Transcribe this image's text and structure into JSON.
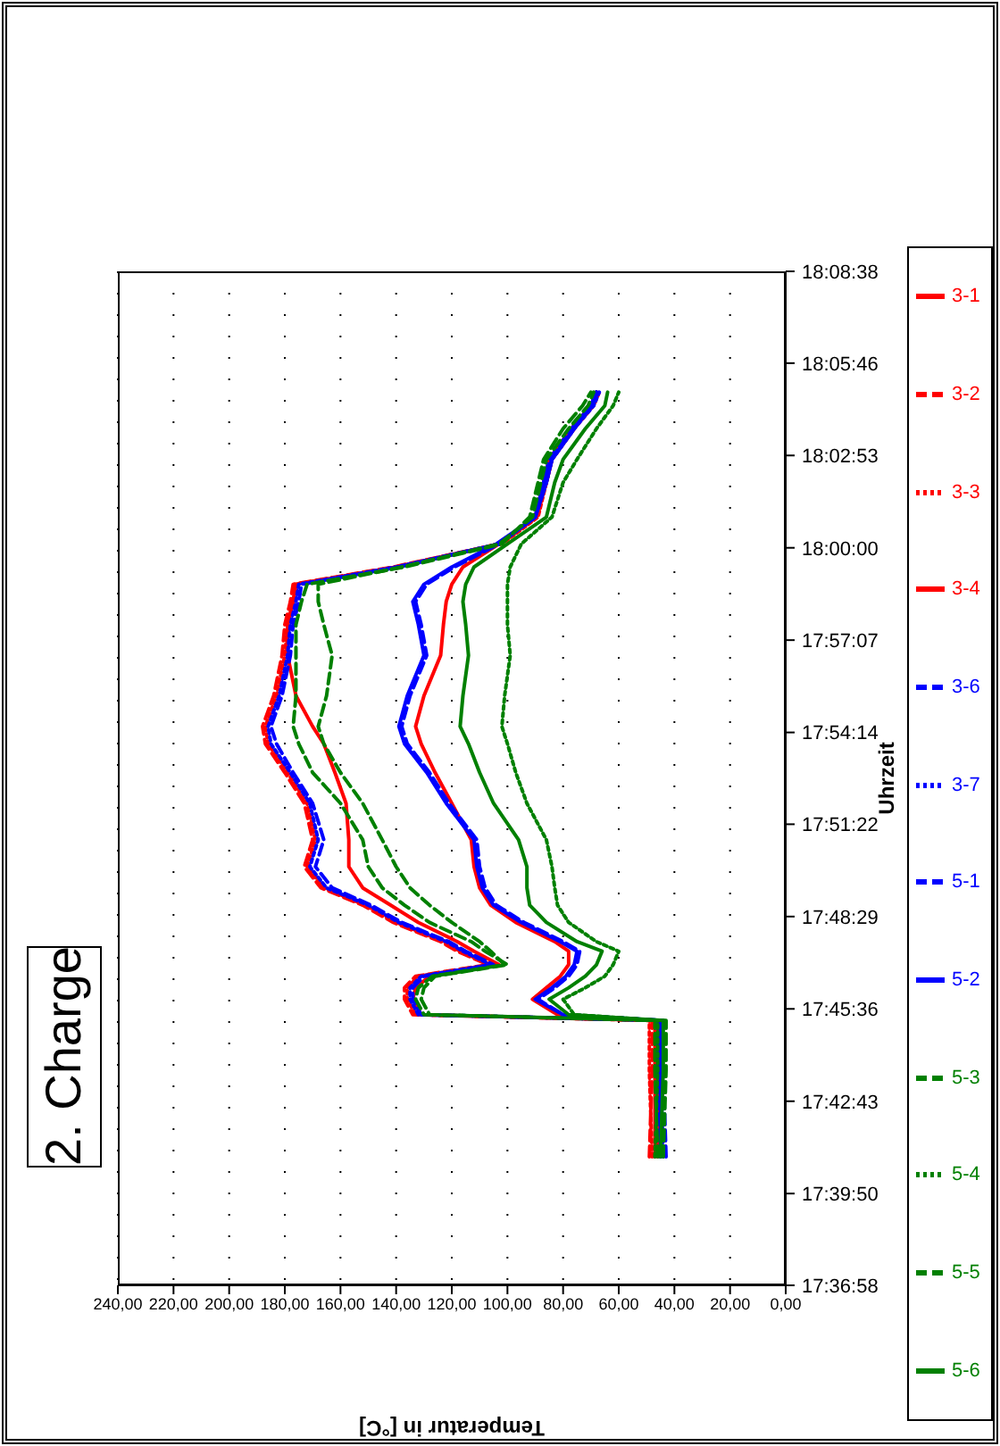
{
  "chart_data": {
    "type": "line",
    "title": "2. Charge",
    "xlabel": "Temperatur in [°C]",
    "ylabel": "Uhrzeit",
    "xlim": [
      240,
      0
    ],
    "xticks": [
      {
        "value": 240,
        "label": "240,00"
      },
      {
        "value": 220,
        "label": "220,00"
      },
      {
        "value": 200,
        "label": "200,00"
      },
      {
        "value": 180,
        "label": "180,00"
      },
      {
        "value": 160,
        "label": "160,00"
      },
      {
        "value": 140,
        "label": "140,00"
      },
      {
        "value": 120,
        "label": "120,00"
      },
      {
        "value": 100,
        "label": "100,00"
      },
      {
        "value": 80,
        "label": "80,00"
      },
      {
        "value": 60,
        "label": "60,00"
      },
      {
        "value": 40,
        "label": "40,00"
      },
      {
        "value": 20,
        "label": "20,00"
      },
      {
        "value": 0,
        "label": "0,00"
      }
    ],
    "ylim": [
      17.61611,
      18.14389
    ],
    "yticks": [
      {
        "value": 17.61611,
        "label": "17:36:58"
      },
      {
        "value": 17.66389,
        "label": "17:39:50"
      },
      {
        "value": 17.71194,
        "label": "17:42:43"
      },
      {
        "value": 17.76,
        "label": "17:45:36"
      },
      {
        "value": 17.80806,
        "label": "17:48:29"
      },
      {
        "value": 17.85611,
        "label": "17:51:22"
      },
      {
        "value": 17.90389,
        "label": "17:54:14"
      },
      {
        "value": 17.95194,
        "label": "17:57:07"
      },
      {
        "value": 18,
        "label": "18:00:00"
      },
      {
        "value": 18.04806,
        "label": "18:02:53"
      },
      {
        "value": 18.09611,
        "label": "18:05:46"
      },
      {
        "value": 18.14389,
        "label": "18:08:38"
      }
    ],
    "grid": "x",
    "legend": "right",
    "marker": "none",
    "series": [
      {
        "name": "3-1",
        "color": "#ff0000",
        "line_style": "solid",
        "x": [
          47,
          47,
          47,
          131,
          134,
          133,
          128,
          103,
          112,
          118,
          132,
          142,
          152,
          157,
          157,
          158,
          162,
          166,
          170,
          176,
          179,
          179,
          177,
          176,
          140,
          103,
          90,
          87,
          85,
          77,
          70,
          68
        ],
        "values": [
          17.683,
          17.728,
          17.754,
          17.757,
          17.765,
          17.771,
          17.777,
          17.783,
          17.79,
          17.795,
          17.805,
          17.814,
          17.823,
          17.834,
          17.848,
          17.867,
          17.883,
          17.898,
          17.907,
          17.923,
          17.944,
          17.96,
          17.972,
          17.981,
          17.99,
          18.002,
          18.016,
          18.034,
          18.046,
          18.062,
          18.074,
          18.081
        ]
      },
      {
        "name": "3-2",
        "color": "#ff0000",
        "line_style": "dashed",
        "x": [
          49,
          48,
          48,
          134,
          137,
          137,
          133,
          107,
          118,
          124,
          141,
          152,
          167,
          173,
          170,
          173,
          180,
          187,
          188,
          184,
          181,
          180,
          178,
          177,
          141,
          103,
          90,
          87,
          85,
          77,
          70,
          68
        ],
        "values": [
          17.683,
          17.728,
          17.754,
          17.757,
          17.765,
          17.771,
          17.777,
          17.783,
          17.79,
          17.795,
          17.805,
          17.814,
          17.823,
          17.834,
          17.848,
          17.867,
          17.883,
          17.898,
          17.907,
          17.923,
          17.944,
          17.96,
          17.972,
          17.981,
          17.99,
          18.002,
          18.016,
          18.034,
          18.046,
          18.062,
          18.074,
          18.081
        ]
      },
      {
        "name": "3-3",
        "color": "#ff0000",
        "line_style": "dotted",
        "x": [
          48,
          49,
          49,
          133,
          136,
          136,
          132,
          106,
          117,
          123,
          140,
          151,
          166,
          172,
          169,
          172,
          179,
          186,
          187,
          183,
          180,
          179,
          177,
          176,
          140,
          102,
          89,
          86,
          84,
          76,
          69,
          67
        ],
        "values": [
          17.683,
          17.728,
          17.754,
          17.757,
          17.765,
          17.771,
          17.777,
          17.783,
          17.79,
          17.795,
          17.805,
          17.814,
          17.823,
          17.834,
          17.848,
          17.867,
          17.883,
          17.898,
          17.907,
          17.923,
          17.944,
          17.96,
          17.972,
          17.981,
          17.99,
          18.002,
          18.016,
          18.034,
          18.046,
          18.062,
          18.074,
          18.081
        ]
      },
      {
        "name": "3-4",
        "color": "#ff0000",
        "line_style": "solid",
        "x": [
          46,
          46,
          46,
          82,
          91,
          86,
          81,
          78,
          78,
          83,
          97,
          106,
          110,
          112,
          113,
          120,
          126,
          131,
          133,
          130,
          124,
          123,
          122,
          120,
          116,
          103,
          90,
          86,
          84,
          76,
          70,
          68
        ],
        "values": [
          17.683,
          17.728,
          17.754,
          17.757,
          17.765,
          17.771,
          17.777,
          17.783,
          17.79,
          17.795,
          17.805,
          17.814,
          17.823,
          17.834,
          17.848,
          17.867,
          17.883,
          17.898,
          17.907,
          17.923,
          17.944,
          17.96,
          17.972,
          17.981,
          17.99,
          18.002,
          18.016,
          18.034,
          18.046,
          18.062,
          18.074,
          18.081
        ]
      },
      {
        "name": "3-6",
        "color": "#0000ff",
        "line_style": "dashed",
        "x": [
          45,
          46,
          46,
          131,
          134,
          134,
          130,
          105,
          115,
          121,
          138,
          149,
          163,
          169,
          166,
          170,
          177,
          183,
          185,
          181,
          178,
          177,
          175,
          174,
          139,
          103,
          90,
          87,
          85,
          77,
          70,
          68
        ],
        "values": [
          17.683,
          17.728,
          17.754,
          17.757,
          17.765,
          17.771,
          17.777,
          17.783,
          17.79,
          17.795,
          17.805,
          17.814,
          17.823,
          17.834,
          17.848,
          17.867,
          17.883,
          17.898,
          17.907,
          17.923,
          17.944,
          17.96,
          17.972,
          17.981,
          17.99,
          18.002,
          18.016,
          18.034,
          18.046,
          18.062,
          18.074,
          18.081
        ]
      },
      {
        "name": "3-7",
        "color": "#0000ff",
        "line_style": "dotted",
        "x": [
          44,
          45,
          45,
          132,
          135,
          135,
          131,
          106,
          116,
          122,
          139,
          150,
          165,
          171,
          168,
          171,
          178,
          185,
          186,
          182,
          179,
          178,
          176,
          175,
          140,
          103,
          90,
          87,
          84,
          76,
          69,
          67
        ],
        "values": [
          17.683,
          17.728,
          17.754,
          17.757,
          17.765,
          17.771,
          17.777,
          17.783,
          17.79,
          17.795,
          17.805,
          17.814,
          17.823,
          17.834,
          17.848,
          17.867,
          17.883,
          17.898,
          17.907,
          17.923,
          17.944,
          17.96,
          17.972,
          17.981,
          17.99,
          18.002,
          18.016,
          18.034,
          18.046,
          18.062,
          18.074,
          18.081
        ]
      },
      {
        "name": "5-1",
        "color": "#0000ff",
        "line_style": "dashed",
        "x": [
          43,
          44,
          44,
          80,
          89,
          83,
          78,
          75,
          74,
          80,
          94,
          104,
          108,
          110,
          111,
          121,
          128,
          136,
          138,
          135,
          129,
          131,
          133,
          129,
          119,
          103,
          90,
          86,
          84,
          76,
          70,
          68
        ],
        "values": [
          17.683,
          17.728,
          17.754,
          17.757,
          17.765,
          17.771,
          17.777,
          17.783,
          17.79,
          17.795,
          17.805,
          17.814,
          17.823,
          17.834,
          17.848,
          17.867,
          17.883,
          17.898,
          17.907,
          17.923,
          17.944,
          17.96,
          17.972,
          17.981,
          17.99,
          18.002,
          18.016,
          18.034,
          18.046,
          18.062,
          18.074,
          18.081
        ]
      },
      {
        "name": "5-2",
        "color": "#0000ff",
        "line_style": "solid",
        "x": [
          45,
          45,
          45,
          80,
          90,
          84,
          79,
          76,
          75,
          81,
          95,
          105,
          109,
          111,
          112,
          122,
          129,
          137,
          139,
          136,
          130,
          132,
          134,
          130,
          120,
          104,
          90,
          86,
          84,
          76,
          70,
          68
        ],
        "values": [
          17.683,
          17.728,
          17.754,
          17.757,
          17.765,
          17.771,
          17.777,
          17.783,
          17.79,
          17.795,
          17.805,
          17.814,
          17.823,
          17.834,
          17.848,
          17.867,
          17.883,
          17.898,
          17.907,
          17.923,
          17.944,
          17.96,
          17.972,
          17.981,
          17.99,
          18.002,
          18.016,
          18.034,
          18.046,
          18.062,
          18.074,
          18.081
        ]
      },
      {
        "name": "5-3",
        "color": "#008000",
        "line_style": "dashed",
        "x": [
          46,
          47,
          47,
          128,
          131,
          130,
          126,
          100,
          108,
          113,
          128,
          137,
          145,
          150,
          152,
          160,
          170,
          175,
          177,
          176,
          176,
          176,
          174,
          172,
          137,
          102,
          92,
          89,
          87,
          80,
          73,
          70
        ],
        "values": [
          17.683,
          17.728,
          17.754,
          17.757,
          17.765,
          17.771,
          17.777,
          17.783,
          17.79,
          17.795,
          17.805,
          17.814,
          17.823,
          17.834,
          17.848,
          17.867,
          17.883,
          17.898,
          17.907,
          17.923,
          17.944,
          17.96,
          17.972,
          17.981,
          17.99,
          18.002,
          18.016,
          18.034,
          18.046,
          18.062,
          18.074,
          18.081
        ]
      },
      {
        "name": "5-4",
        "color": "#008000",
        "line_style": "dotted",
        "x": [
          47,
          46,
          46,
          76,
          80,
          72,
          65,
          62,
          60,
          68,
          78,
          82,
          83,
          84,
          86,
          93,
          97,
          100,
          102,
          101,
          99,
          100,
          100,
          100,
          99,
          95,
          84,
          80,
          75,
          68,
          62,
          60
        ],
        "values": [
          17.683,
          17.728,
          17.754,
          17.757,
          17.765,
          17.771,
          17.777,
          17.783,
          17.79,
          17.795,
          17.805,
          17.814,
          17.823,
          17.834,
          17.848,
          17.867,
          17.883,
          17.898,
          17.907,
          17.923,
          17.944,
          17.96,
          17.972,
          17.981,
          17.99,
          18.002,
          18.016,
          18.034,
          18.046,
          18.062,
          18.074,
          18.081
        ]
      },
      {
        "name": "5-5",
        "color": "#008000",
        "line_style": "dashed",
        "x": [
          44,
          43,
          43,
          130,
          133,
          132,
          127,
          101,
          106,
          110,
          120,
          128,
          135,
          140,
          145,
          152,
          160,
          166,
          168,
          165,
          163,
          166,
          168,
          168,
          138,
          103,
          91,
          88,
          86,
          78,
          71,
          69
        ],
        "values": [
          17.683,
          17.728,
          17.754,
          17.757,
          17.765,
          17.771,
          17.777,
          17.783,
          17.79,
          17.795,
          17.805,
          17.814,
          17.823,
          17.834,
          17.848,
          17.867,
          17.883,
          17.898,
          17.907,
          17.923,
          17.944,
          17.96,
          17.972,
          17.981,
          17.99,
          18.002,
          18.016,
          18.034,
          18.046,
          18.062,
          18.074,
          18.081
        ]
      },
      {
        "name": "5-6",
        "color": "#008000",
        "line_style": "solid",
        "x": [
          45,
          44,
          44,
          78,
          85,
          78,
          72,
          68,
          66,
          75,
          86,
          92,
          93,
          93,
          96,
          105,
          110,
          114,
          117,
          116,
          114,
          115,
          116,
          115,
          112,
          100,
          86,
          83,
          80,
          72,
          65,
          64
        ],
        "values": [
          17.683,
          17.728,
          17.754,
          17.757,
          17.765,
          17.771,
          17.777,
          17.783,
          17.79,
          17.795,
          17.805,
          17.814,
          17.823,
          17.834,
          17.848,
          17.867,
          17.883,
          17.898,
          17.907,
          17.923,
          17.944,
          17.96,
          17.972,
          17.981,
          17.99,
          18.002,
          18.016,
          18.034,
          18.046,
          18.062,
          18.074,
          18.081
        ]
      }
    ]
  }
}
